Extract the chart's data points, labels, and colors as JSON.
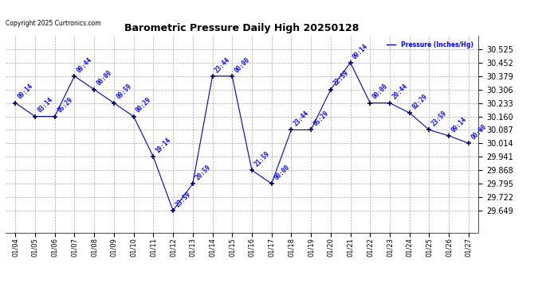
{
  "title": "Barometric Pressure Daily High 20250128",
  "copyright": "Copyright 2025 Curtronics.com",
  "legend_label": "Pressure (Inches/Hg)",
  "x_labels": [
    "01/04",
    "01/05",
    "01/06",
    "01/07",
    "01/08",
    "01/09",
    "01/10",
    "01/11",
    "01/12",
    "01/13",
    "01/14",
    "01/15",
    "01/16",
    "01/17",
    "01/18",
    "01/19",
    "01/20",
    "01/21",
    "01/22",
    "01/23",
    "01/24",
    "01/25",
    "01/26",
    "01/27"
  ],
  "y_values": [
    30.233,
    30.16,
    30.16,
    30.379,
    30.306,
    30.233,
    30.16,
    29.941,
    29.649,
    29.795,
    30.379,
    30.379,
    29.868,
    29.795,
    30.087,
    30.087,
    30.306,
    30.452,
    30.233,
    30.233,
    30.179,
    30.087,
    30.055,
    30.014
  ],
  "time_labels": [
    "09:14",
    "03:14",
    "05:29",
    "09:44",
    "00:00",
    "09:59",
    "00:29",
    "19:14",
    "23:59",
    "20:59",
    "23:44",
    "00:00",
    "21:59",
    "00:00",
    "23:44",
    "05:29",
    "22:59",
    "09:14",
    "00:00",
    "20:44",
    "02:29",
    "23:59",
    "09:14",
    "00:00"
  ],
  "y_ticks": [
    29.649,
    29.722,
    29.795,
    29.868,
    29.941,
    30.014,
    30.087,
    30.16,
    30.233,
    30.306,
    30.379,
    30.452,
    30.525
  ],
  "ylim_min": 29.53,
  "ylim_max": 30.598,
  "line_color": "#0000cc",
  "marker_color": "#000066",
  "label_color": "#0000ff",
  "bg_color": "#ffffff",
  "grid_color": "#aaaaaa",
  "title_fontsize": 9,
  "label_fontsize": 6,
  "tick_fontsize": 7,
  "annotation_fontsize": 5.5
}
